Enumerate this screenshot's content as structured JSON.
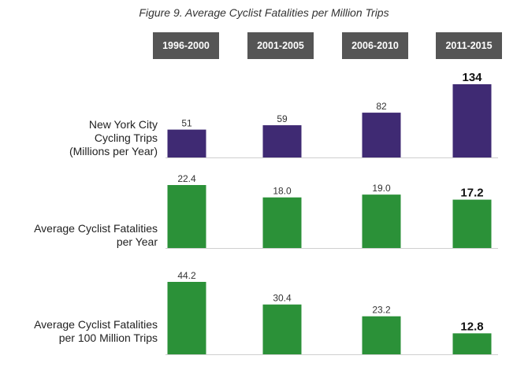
{
  "title": "Figure 9. Average Cyclist Fatalities per Million Trips",
  "chart_data": [
    {
      "type": "bar",
      "title": "",
      "categories": [
        "1996-2000",
        "2001-2005",
        "2006-2010",
        "2011-2015"
      ],
      "ylabel_lines": [
        "New York City",
        "Cycling Trips",
        "(Millions per Year)"
      ],
      "values": [
        51,
        59,
        82,
        134
      ],
      "labels": [
        "51",
        "59",
        "82",
        "134"
      ],
      "color": "#3f2a73",
      "highlight_last": true
    },
    {
      "type": "bar",
      "title": "",
      "categories": [
        "1996-2000",
        "2001-2005",
        "2006-2010",
        "2011-2015"
      ],
      "ylabel_lines": [
        "Average Cyclist Fatalities",
        "per Year"
      ],
      "values": [
        22.4,
        18.0,
        19.0,
        17.2
      ],
      "labels": [
        "22.4",
        "18.0",
        "19.0",
        "17.2"
      ],
      "color": "#2b9138",
      "highlight_last": true
    },
    {
      "type": "bar",
      "title": "",
      "categories": [
        "1996-2000",
        "2001-2005",
        "2006-2010",
        "2011-2015"
      ],
      "ylabel_lines": [
        "Average Cyclist Fatalities",
        "per 100 Million Trips"
      ],
      "values": [
        44.2,
        30.4,
        23.2,
        12.8
      ],
      "labels": [
        "44.2",
        "30.4",
        "23.2",
        "12.8"
      ],
      "color": "#2b9138",
      "highlight_last": true
    }
  ]
}
